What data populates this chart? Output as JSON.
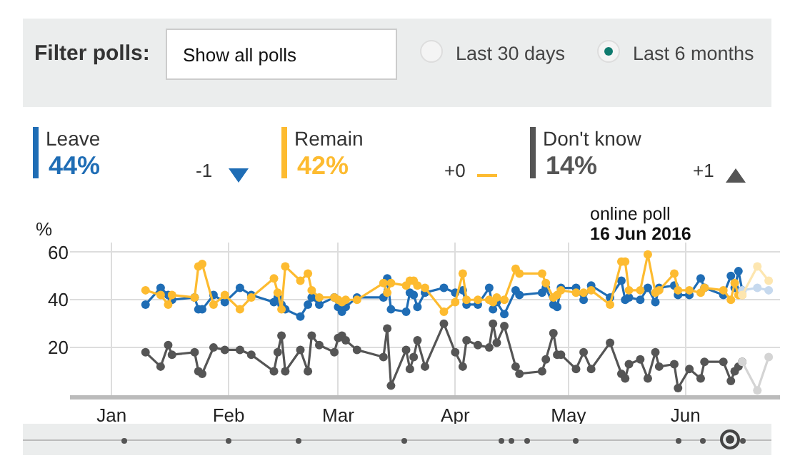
{
  "chart_data": {
    "type": "line",
    "ylabel": "%",
    "marker": "circle",
    "grid": true,
    "legend": "top",
    "xlim": [
      "2015-12-21",
      "2016-06-26"
    ],
    "ylim": [
      0,
      64
    ],
    "yticks": [
      20,
      40,
      60
    ],
    "xticks": [
      {
        "value": "2016-01-01",
        "label": "Jan"
      },
      {
        "value": "2016-02-01",
        "label": "Feb"
      },
      {
        "value": "2016-03-01",
        "label": "Mar"
      },
      {
        "value": "2016-04-01",
        "label": "Apr"
      },
      {
        "value": "2016-05-01",
        "label": "May"
      },
      {
        "value": "2016-06-01",
        "label": "Jun"
      }
    ],
    "annotations": [
      "Filter polls:",
      "Show all polls",
      "Last 30 days",
      "Last 6 months",
      "44%",
      "-1",
      "42%",
      "+0",
      "14%",
      "+1",
      "online poll",
      "16 Jun 2016"
    ],
    "x": [
      "2016-01-10",
      "2016-01-14",
      "2016-01-16",
      "2016-01-17",
      "2016-01-23",
      "2016-01-24",
      "2016-01-25",
      "2016-01-28",
      "2016-01-31",
      "2016-02-04",
      "2016-02-07",
      "2016-02-13",
      "2016-02-14",
      "2016-02-15",
      "2016-02-16",
      "2016-02-20",
      "2016-02-22",
      "2016-02-23",
      "2016-02-25",
      "2016-02-29",
      "2016-03-01",
      "2016-03-02",
      "2016-03-03",
      "2016-03-06",
      "2016-03-13",
      "2016-03-14",
      "2016-03-15",
      "2016-03-19",
      "2016-03-20",
      "2016-03-21",
      "2016-03-22",
      "2016-03-24",
      "2016-03-29",
      "2016-04-01",
      "2016-04-03",
      "2016-04-04",
      "2016-04-07",
      "2016-04-10",
      "2016-04-11",
      "2016-04-12",
      "2016-04-14",
      "2016-04-17",
      "2016-04-18",
      "2016-04-24",
      "2016-04-25",
      "2016-04-27",
      "2016-04-28",
      "2016-04-29",
      "2016-05-03",
      "2016-05-05",
      "2016-05-07",
      "2016-05-12",
      "2016-05-15",
      "2016-05-16",
      "2016-05-17",
      "2016-05-20",
      "2016-05-22",
      "2016-05-24",
      "2016-05-25",
      "2016-05-29",
      "2016-05-30",
      "2016-06-02",
      "2016-06-05",
      "2016-06-06",
      "2016-06-11",
      "2016-06-13",
      "2016-06-14",
      "2016-06-15",
      "2016-06-16"
    ],
    "series": [
      {
        "name": "Leave",
        "color": "#1f6db5",
        "values": [
          38,
          45,
          42,
          40,
          41,
          36,
          36,
          42,
          39,
          45,
          42,
          39,
          41,
          38,
          36,
          33,
          38,
          41,
          38,
          41,
          37,
          35,
          37,
          41,
          41,
          49,
          36,
          35,
          43,
          42,
          37,
          43,
          45,
          43,
          44,
          38,
          38,
          45,
          36,
          39,
          34,
          44,
          42,
          43,
          45,
          38,
          37,
          45,
          45,
          40,
          46,
          41,
          48,
          40,
          41,
          40,
          45,
          39,
          45,
          46,
          42,
          42,
          49,
          45,
          42,
          50,
          45,
          52,
          44
        ]
      },
      {
        "name": "Remain",
        "color": "#fdbb30",
        "values": [
          44,
          42,
          38,
          42,
          41,
          54,
          55,
          38,
          42,
          36,
          41,
          49,
          43,
          36,
          54,
          48,
          51,
          44,
          41,
          41,
          40,
          39,
          40,
          40,
          47,
          43,
          47,
          46,
          48,
          48,
          46,
          45,
          35,
          39,
          51,
          40,
          40,
          40,
          39,
          41,
          40,
          53,
          51,
          51,
          47,
          41,
          42,
          44,
          43,
          43,
          44,
          38,
          56,
          56,
          44,
          44,
          59,
          43,
          44,
          51,
          44,
          44,
          43,
          45,
          44,
          40,
          47,
          42,
          42
        ]
      },
      {
        "name": "Don't know",
        "color": "#555555",
        "values": [
          18,
          12,
          21,
          17,
          18,
          10,
          9,
          20,
          19,
          19,
          17,
          10,
          18,
          25,
          10,
          19,
          10,
          25,
          21,
          18,
          24,
          25,
          23,
          19,
          16,
          28,
          4,
          19,
          11,
          16,
          23,
          12,
          30,
          18,
          12,
          23,
          21,
          20,
          30,
          22,
          29,
          12,
          9,
          10,
          15,
          26,
          17,
          17,
          11,
          18,
          11,
          22,
          9,
          7,
          13,
          15,
          7,
          18,
          12,
          13,
          3,
          11,
          7,
          14,
          14,
          6,
          10,
          12,
          14
        ]
      },
      {
        "color": "#c6d9ee",
        "x": [
          "2016-06-16",
          "2016-06-20",
          "2016-06-23"
        ],
        "values": [
          44,
          45,
          44
        ]
      },
      {
        "color": "#fde6b0",
        "x": [
          "2016-06-16",
          "2016-06-20",
          "2016-06-23"
        ],
        "values": [
          42,
          54,
          48
        ]
      },
      {
        "color": "#d4d4d4",
        "x": [
          "2016-06-16",
          "2016-06-20",
          "2016-06-23"
        ],
        "values": [
          14,
          2,
          16
        ]
      }
    ]
  }
}
